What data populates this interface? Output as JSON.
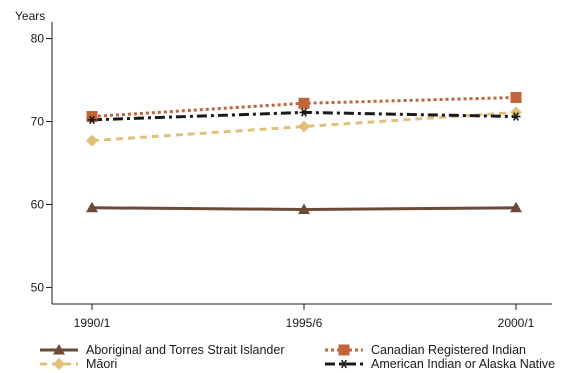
{
  "chart_data": {
    "type": "line",
    "ylabel": "Years",
    "categories": [
      "1990/1",
      "1995/6",
      "2000/1"
    ],
    "ylim": [
      48,
      82
    ],
    "yticks": [
      50,
      60,
      70,
      80
    ],
    "grid": false,
    "legend_position": "bottom",
    "series": [
      {
        "name": "Aboriginal and Torres Strait Islander",
        "values": [
          59.6,
          59.4,
          59.6
        ],
        "color": "#6b4a3a",
        "marker": "triangle",
        "dash": "solid"
      },
      {
        "name": "Canadian Registered Indian",
        "values": [
          70.6,
          72.2,
          72.9
        ],
        "color": "#c0643a",
        "marker": "square",
        "dash": "dotted"
      },
      {
        "name": "Māori",
        "values": [
          67.7,
          69.4,
          71.1
        ],
        "color": "#e2c07a",
        "marker": "diamond",
        "dash": "dashed"
      },
      {
        "name": "American Indian or Alaska Native",
        "values": [
          70.2,
          71.1,
          70.6
        ],
        "color": "#1a1a1a",
        "marker": "star",
        "dash": "dashdot"
      }
    ]
  }
}
